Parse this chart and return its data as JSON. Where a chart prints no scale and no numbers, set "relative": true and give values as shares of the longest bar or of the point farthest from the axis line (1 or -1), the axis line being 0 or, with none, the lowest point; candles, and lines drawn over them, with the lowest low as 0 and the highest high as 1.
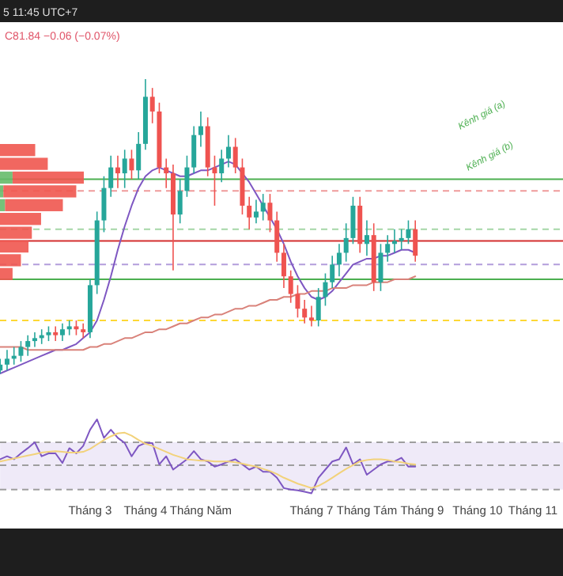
{
  "chart_data": [
    {
      "type": "candlestick",
      "relative": true,
      "categories": [
        null,
        null,
        null,
        null,
        null,
        null,
        null,
        null,
        null,
        null,
        null,
        null,
        null,
        "Tháng 3",
        null,
        null,
        null,
        null,
        null,
        null,
        null,
        "Tháng 4",
        null,
        null,
        null,
        null,
        null,
        null,
        null,
        "Tháng Năm",
        null,
        null,
        null,
        null,
        null,
        null,
        null,
        null,
        null,
        null,
        null,
        null,
        null,
        null,
        null,
        "Tháng 7",
        null,
        null,
        null,
        null,
        null,
        null,
        null,
        "Tháng Tám",
        null,
        null,
        null,
        null,
        null,
        null,
        null,
        "Tháng 9",
        null,
        null,
        null,
        null,
        null,
        null,
        null,
        "Tháng 10",
        null,
        null,
        null,
        null,
        null,
        null,
        null,
        "Tháng 11",
        null
      ],
      "ohlc": [
        [
          0.01,
          0.05,
          0,
          0.03
        ],
        [
          0.03,
          0.08,
          0.01,
          0.05
        ],
        [
          0.05,
          0.09,
          0.03,
          0.06
        ],
        [
          0.06,
          0.11,
          0.04,
          0.09
        ],
        [
          0.09,
          0.13,
          0.06,
          0.11
        ],
        [
          0.11,
          0.14,
          0.09,
          0.12
        ],
        [
          0.12,
          0.15,
          0.1,
          0.13
        ],
        [
          0.13,
          0.16,
          0.11,
          0.14
        ],
        [
          0.14,
          0.16,
          0.11,
          0.13
        ],
        [
          0.13,
          0.17,
          0.11,
          0.15
        ],
        [
          0.15,
          0.18,
          0.13,
          0.16
        ],
        [
          0.16,
          0.18,
          0.13,
          0.15
        ],
        [
          0.15,
          0.17,
          0.12,
          0.14
        ],
        [
          0.14,
          0.32,
          0.12,
          0.3
        ],
        [
          0.3,
          0.55,
          0.27,
          0.52
        ],
        [
          0.52,
          0.67,
          0.48,
          0.63
        ],
        [
          0.63,
          0.74,
          0.6,
          0.7
        ],
        [
          0.7,
          0.74,
          0.63,
          0.68
        ],
        [
          0.68,
          0.76,
          0.63,
          0.73
        ],
        [
          0.73,
          0.76,
          0.66,
          0.69
        ],
        [
          0.69,
          0.82,
          0.66,
          0.78
        ],
        [
          0.78,
          1,
          0.76,
          0.94
        ],
        [
          0.94,
          0.97,
          0.85,
          0.89
        ],
        [
          0.89,
          0.92,
          0.68,
          0.7
        ],
        [
          0.7,
          0.73,
          0.63,
          0.68
        ],
        [
          0.68,
          0.71,
          0.35,
          0.54
        ],
        [
          0.54,
          0.66,
          0.51,
          0.62
        ],
        [
          0.62,
          0.74,
          0.6,
          0.7
        ],
        [
          0.7,
          0.84,
          0.68,
          0.81
        ],
        [
          0.81,
          0.89,
          0.77,
          0.84
        ],
        [
          0.84,
          0.87,
          0.67,
          0.7
        ],
        [
          0.7,
          0.74,
          0.57,
          0.68
        ],
        [
          0.68,
          0.76,
          0.65,
          0.73
        ],
        [
          0.73,
          0.81,
          0.7,
          0.77
        ],
        [
          0.77,
          0.8,
          0.68,
          0.7
        ],
        [
          0.7,
          0.73,
          0.54,
          0.57
        ],
        [
          0.57,
          0.6,
          0.49,
          0.53
        ],
        [
          0.53,
          0.59,
          0.51,
          0.55
        ],
        [
          0.55,
          0.61,
          0.52,
          0.58
        ],
        [
          0.58,
          0.61,
          0.48,
          0.52
        ],
        [
          0.52,
          0.55,
          0.38,
          0.41
        ],
        [
          0.41,
          0.44,
          0.29,
          0.33
        ],
        [
          0.33,
          0.35,
          0.24,
          0.27
        ],
        [
          0.27,
          0.3,
          0.19,
          0.22
        ],
        [
          0.22,
          0.25,
          0.17,
          0.19
        ],
        [
          0.19,
          0.23,
          0.16,
          0.18
        ],
        [
          0.18,
          0.29,
          0.16,
          0.26
        ],
        [
          0.26,
          0.34,
          0.23,
          0.31
        ],
        [
          0.31,
          0.4,
          0.29,
          0.37
        ],
        [
          0.37,
          0.44,
          0.33,
          0.41
        ],
        [
          0.41,
          0.51,
          0.38,
          0.46
        ],
        [
          0.46,
          0.6,
          0.44,
          0.57
        ],
        [
          0.57,
          0.6,
          0.41,
          0.44
        ],
        [
          0.44,
          0.52,
          0.4,
          0.47
        ],
        [
          0.47,
          0.51,
          0.28,
          0.31
        ],
        [
          0.31,
          0.44,
          0.28,
          0.41
        ],
        [
          0.41,
          0.47,
          0.38,
          0.44
        ],
        [
          0.44,
          0.49,
          0.41,
          0.45
        ],
        [
          0.45,
          0.49,
          0.42,
          0.46
        ],
        [
          0.46,
          0.52,
          0.44,
          0.49
        ],
        [
          0.49,
          0.52,
          0.38,
          0.4
        ],
        null,
        null,
        null,
        null,
        null,
        null,
        null,
        null,
        null,
        null,
        null,
        null,
        null,
        null,
        null,
        null,
        null,
        null
      ],
      "series": [
        {
          "type": "line",
          "color": "#7e57c2",
          "values": [
            0,
            0.01,
            0.02,
            0.03,
            0.04,
            0.05,
            0.06,
            0.07,
            0.08,
            0.08,
            0.09,
            0.1,
            0.12,
            0.14,
            0.18,
            0.25,
            0.33,
            0.42,
            0.5,
            0.57,
            0.63,
            0.67,
            0.69,
            0.7,
            0.69,
            0.68,
            0.67,
            0.67,
            0.68,
            0.69,
            0.69,
            0.7,
            0.71,
            0.72,
            0.71,
            0.68,
            0.65,
            0.61,
            0.57,
            0.53,
            0.49,
            0.44,
            0.38,
            0.33,
            0.29,
            0.26,
            0.25,
            0.26,
            0.28,
            0.31,
            0.34,
            0.37,
            0.38,
            0.39,
            0.39,
            0.4,
            0.4,
            0.41,
            0.42,
            0.42,
            0.41,
            null,
            null,
            null,
            null,
            null,
            null,
            null,
            null,
            null,
            null,
            null,
            null,
            null,
            null,
            null,
            null,
            null,
            null
          ]
        },
        {
          "type": "line",
          "color": "#d9827a",
          "values": [
            0.09,
            0.09,
            0.09,
            0.09,
            0.08,
            0.08,
            0.08,
            0.08,
            0.08,
            0.08,
            0.08,
            0.08,
            0.08,
            0.09,
            0.09,
            0.1,
            0.1,
            0.11,
            0.12,
            0.12,
            0.13,
            0.14,
            0.14,
            0.15,
            0.15,
            0.16,
            0.17,
            0.17,
            0.18,
            0.19,
            0.19,
            0.2,
            0.2,
            0.21,
            0.22,
            0.22,
            0.23,
            0.23,
            0.24,
            0.25,
            0.25,
            0.26,
            0.26,
            0.27,
            0.27,
            0.28,
            0.28,
            0.28,
            0.29,
            0.29,
            0.29,
            0.3,
            0.3,
            0.3,
            0.31,
            0.31,
            0.31,
            0.32,
            0.32,
            0.32,
            0.33,
            null,
            null,
            null,
            null,
            null,
            null,
            null,
            null,
            null,
            null,
            null,
            null,
            null,
            null,
            null,
            null,
            null,
            null
          ]
        }
      ],
      "ref_lines": [
        {
          "axis": "y",
          "value": 0.66,
          "color": "#4caf50",
          "line_style": "solid"
        },
        {
          "axis": "y",
          "value": 0.62,
          "color": "#ef9a9a",
          "line_style": "dashed"
        },
        {
          "axis": "y",
          "value": 0.49,
          "color": "#a5d6a7",
          "line_style": "dashed"
        },
        {
          "axis": "y",
          "value": 0.45,
          "color": "#d32f2f",
          "line_style": "solid"
        },
        {
          "axis": "y",
          "value": 0.37,
          "color": "#b39ddb",
          "line_style": "dashed"
        },
        {
          "axis": "y",
          "value": 0.32,
          "color": "#4caf50",
          "line_style": "solid"
        },
        {
          "axis": "y",
          "value": 0.18,
          "color": "#fdd835",
          "line_style": "dashed"
        }
      ],
      "annotations": [
        "5 11:45 UTC+7",
        "C81.84  −0.06 (−0.07%)",
        "Kênh giá (a)",
        "Kênh giá (b)"
      ]
    },
    {
      "type": "bar",
      "orientation": "horizontal",
      "stacked": true,
      "relative": true,
      "categories": [
        null,
        null,
        null,
        null,
        null,
        null,
        null,
        null,
        null,
        null
      ],
      "series": [
        {
          "color": "#66bb6a",
          "values": [
            0,
            0,
            0.15,
            0.04,
            0.06,
            0,
            0,
            0,
            0,
            0
          ]
        },
        {
          "color": "#f0574f",
          "values": [
            0.42,
            0.57,
            0.85,
            0.87,
            0.69,
            0.49,
            0.38,
            0.34,
            0.25,
            0.15
          ]
        }
      ]
    },
    {
      "type": "line",
      "relative": true,
      "categories": [
        null,
        null,
        null,
        null,
        null,
        null,
        null,
        null,
        null,
        null,
        null,
        null,
        null,
        null,
        null,
        null,
        null,
        null,
        null,
        null,
        null,
        null,
        null,
        null,
        null,
        null,
        null,
        null,
        null,
        null,
        null,
        null,
        null,
        null,
        null,
        null,
        null,
        null,
        null,
        null,
        null,
        null,
        null,
        null,
        null,
        null,
        null,
        null,
        null,
        null,
        null,
        null,
        null,
        null,
        null,
        null,
        null,
        null,
        null,
        null,
        null,
        null,
        null,
        null,
        null,
        null,
        null,
        null,
        null,
        null,
        null,
        null,
        null,
        null,
        null,
        null,
        null,
        null,
        null
      ],
      "series": [
        {
          "color": "#7e57c2",
          "values": [
            0.46,
            0.5,
            0.46,
            0.54,
            0.61,
            0.69,
            0.5,
            0.54,
            0.54,
            0.41,
            0.61,
            0.54,
            0.64,
            0.86,
            1,
            0.75,
            0.86,
            0.75,
            0.68,
            0.5,
            0.64,
            0.68,
            0.68,
            0.39,
            0.5,
            0.32,
            0.39,
            0.46,
            0.57,
            0.46,
            0.43,
            0.36,
            0.39,
            0.43,
            0.46,
            0.39,
            0.32,
            0.36,
            0.29,
            0.29,
            0.21,
            0.07,
            0.05,
            0.04,
            0.02,
            0,
            0.21,
            0.32,
            0.43,
            0.46,
            0.62,
            0.39,
            0.46,
            0.25,
            0.32,
            0.39,
            0.43,
            0.43,
            0.48,
            0.36,
            0.36,
            null,
            null,
            null,
            null,
            null,
            null,
            null,
            null,
            null,
            null,
            null,
            null,
            null,
            null,
            null,
            null,
            null,
            null
          ]
        },
        {
          "color": "#f2d27a",
          "values": [
            0.43,
            0.45,
            0.47,
            0.49,
            0.51,
            0.53,
            0.55,
            0.56,
            0.57,
            0.56,
            0.55,
            0.55,
            0.56,
            0.6,
            0.66,
            0.72,
            0.77,
            0.81,
            0.82,
            0.78,
            0.72,
            0.67,
            0.64,
            0.6,
            0.56,
            0.52,
            0.49,
            0.46,
            0.45,
            0.44,
            0.44,
            0.43,
            0.43,
            0.43,
            0.42,
            0.4,
            0.38,
            0.36,
            0.33,
            0.3,
            0.26,
            0.21,
            0.17,
            0.13,
            0.1,
            0.07,
            0.1,
            0.15,
            0.21,
            0.27,
            0.33,
            0.38,
            0.43,
            0.45,
            0.46,
            0.46,
            0.45,
            0.43,
            0.42,
            0.4,
            0.39,
            null,
            null,
            null,
            null,
            null,
            null,
            null,
            null,
            null,
            null,
            null,
            null,
            null,
            null,
            null,
            null,
            null,
            null
          ]
        }
      ],
      "bands": [
        {
          "axis": "y",
          "from": 0.05,
          "to": 0.69,
          "color": "#efeaf8"
        }
      ],
      "ref_lines": [
        {
          "axis": "y",
          "value": 0.69,
          "color": "#9e9e9e",
          "line_style": "dashed"
        },
        {
          "axis": "y",
          "value": 0.38,
          "color": "#9e9e9e",
          "line_style": "dashed"
        },
        {
          "axis": "y",
          "value": 0.05,
          "color": "#9e9e9e",
          "line_style": "dashed"
        }
      ]
    }
  ]
}
